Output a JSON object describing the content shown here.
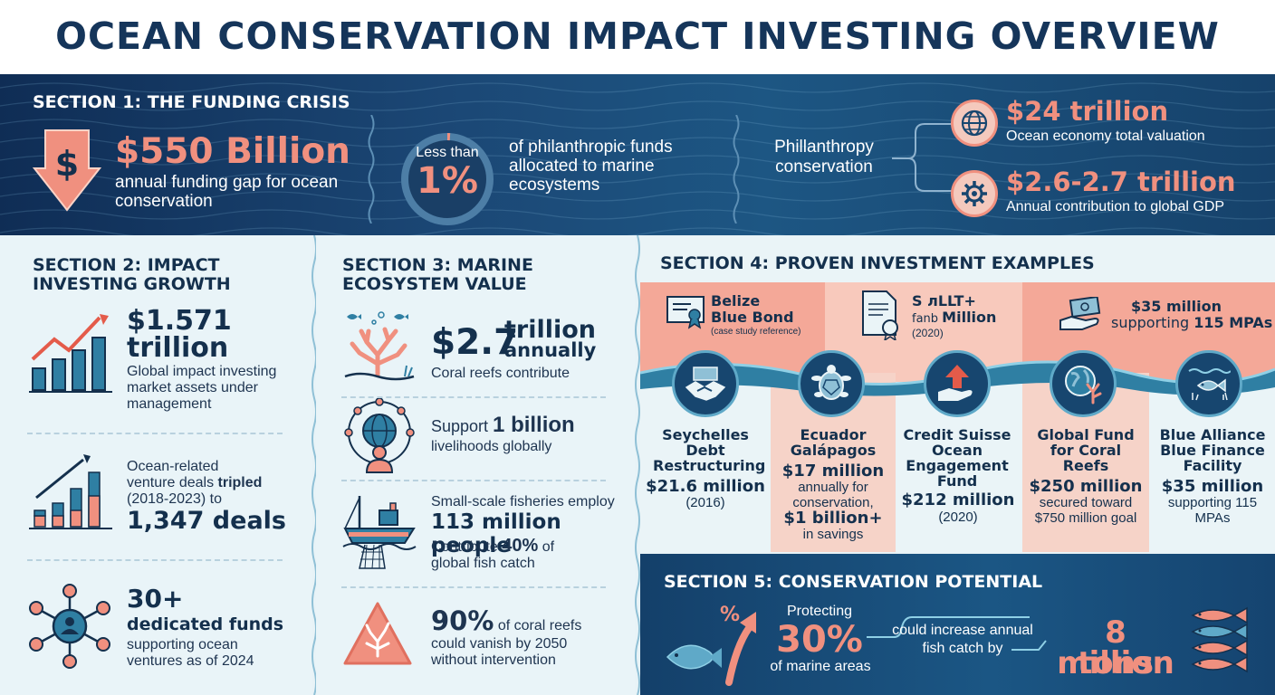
{
  "title": "OCEAN CONSERVATION IMPACT INVESTING OVERVIEW",
  "section1": {
    "heading": "SECTION 1: THE FUNDING CRISIS",
    "gap_value": "$550 Billion",
    "gap_desc": "annual funding gap for ocean conservation",
    "ring_small": "Less than",
    "ring_big": "1%",
    "phil_desc": "of philanthropic funds allocated to marine ecosystems",
    "phil_label": "Phillanthropy conservation",
    "stat1_value": "$24 trillion",
    "stat1_desc": "Ocean economy total valuation",
    "stat2_value": "$2.6-2.7 trillion",
    "stat2_desc": "Annual contribution to global GDP"
  },
  "section2": {
    "heading_line1": "SECTION 2: IMPACT",
    "heading_line2": "INVESTING GROWTH",
    "item1_value_line1": "$1.571",
    "item1_value_line2": "trillion",
    "item1_desc": "Global impact investing market assets under management",
    "item2_desc_line1": "Ocean-related",
    "item2_desc_line2a": "venture deals ",
    "item2_desc_line2b": "tripled",
    "item2_desc_line3": "(2018-2023) to",
    "item2_value": "1,347 deals",
    "item3_value": "30+",
    "item3_label": "dedicated funds",
    "item3_desc": "supporting ocean ventures as of 2024"
  },
  "section3": {
    "heading_line1": "SECTION 3: MARINE",
    "heading_line2": "ECOSYSTEM VALUE",
    "item1_value": "$2.7",
    "item1_unit_line1": "trillion",
    "item1_unit_line2": "annually",
    "item1_desc": "Coral reefs contribute",
    "item2_prefix": "Support ",
    "item2_value": "1 billion",
    "item2_desc": "livelihoods globally",
    "item3_line1": "Small-scale fisheries employ",
    "item3_value": "113 million people",
    "item3_prefix": "Contribute ",
    "item3_pct": "40%",
    "item3_suffix": " of",
    "item3_line4": "global fish catch",
    "item4_pct": "90%",
    "item4_suffix": " of coral reefs",
    "item4_line2": "could vanish by 2050",
    "item4_line3": "without intervention"
  },
  "section4": {
    "heading": "SECTION 4: PROVEN INVESTMENT EXAMPLES",
    "band1_line1": "Belize",
    "band1_line2": "Blue Bond",
    "band1_sub": "(case study reference)",
    "band2_line1": "S лLLT+",
    "band2_line2a": "fanb ",
    "band2_line2b": "Million",
    "band2_sub": "(2020)",
    "band3_line1": "$35 million",
    "band3_line2a": "supporting ",
    "band3_line2b": "115 MPAs",
    "examples": [
      {
        "name": "Seychelles Debt Restructuring",
        "amount": "$21.6 million",
        "sub": "(2016)"
      },
      {
        "name": "Ecuador Galápagos",
        "amount": "$17 million",
        "sub": "annually for conservation,",
        "sub2": "$1 billion+",
        "sub3": "in savings"
      },
      {
        "name": "Credit Suisse Ocean Engagement Fund",
        "amount": "$212 million",
        "sub": "(2020)"
      },
      {
        "name": "Global Fund for Coral Reefs",
        "amount": "$250 million",
        "sub": "secured toward $750 million goal"
      },
      {
        "name": "Blue Alliance Blue Finance Facility",
        "amount": "$35 million",
        "sub": "supporting 115 MPAs"
      }
    ]
  },
  "section5": {
    "heading": "SECTION 5: CONSERVATION POTENTIAL",
    "pct_icon": "%",
    "protecting": "Protecting",
    "value": "30%",
    "marine": "of marine areas",
    "could": "could increase annual fish catch by",
    "result_line1": "8 million",
    "result_line2": "tons"
  },
  "colors": {
    "navy": "#14304d",
    "coral": "#f0907f",
    "teal": "#2f7fa3",
    "light_bg": "#e9f4f8"
  }
}
